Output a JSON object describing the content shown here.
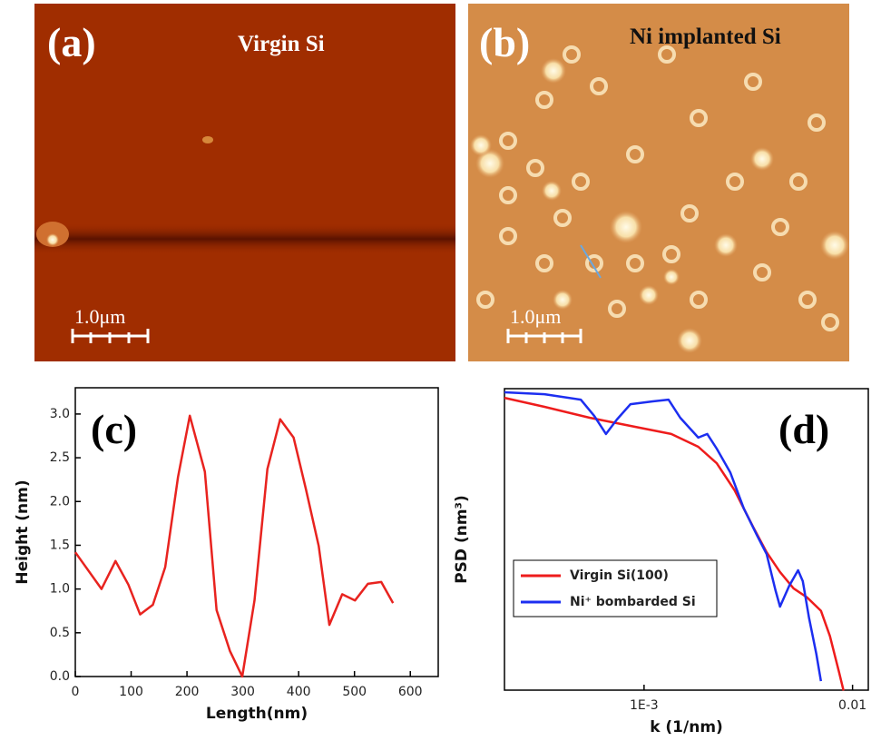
{
  "images": [
    {
      "label": "(a)",
      "caption": "Virgin Si",
      "scale_bar": "1.0μm"
    },
    {
      "label": "(b)",
      "caption": "Ni implanted Si",
      "scale_bar": "1.0μm"
    }
  ],
  "chart_data": [
    {
      "type": "line",
      "panel_label": "(c)",
      "x_label": "Length(nm)",
      "y_label": "Height (nm)",
      "color": "#e8231f",
      "x": [
        0,
        47,
        72,
        95,
        116,
        139,
        161,
        184,
        205,
        232,
        253,
        277,
        299,
        321,
        344,
        367,
        391,
        413,
        436,
        455,
        478,
        501,
        524,
        548,
        569
      ],
      "values": [
        1.42,
        1.0,
        1.32,
        1.05,
        0.71,
        0.82,
        1.25,
        2.28,
        2.98,
        2.34,
        0.76,
        0.29,
        0.0,
        0.87,
        2.37,
        2.94,
        2.73,
        2.14,
        1.49,
        0.59,
        0.94,
        0.87,
        1.06,
        1.08,
        0.84
      ],
      "xlim": [
        0,
        650
      ],
      "ylim": [
        0,
        3.3
      ],
      "xticks": [
        0,
        100,
        200,
        300,
        400,
        500,
        600
      ],
      "yticks": [
        {
          "value": 0,
          "label": "0.0"
        },
        0.5,
        {
          "value": 1,
          "label": "1.0"
        },
        1.5,
        {
          "value": 2,
          "label": "2.0"
        },
        2.5,
        {
          "value": 3,
          "label": "3.0"
        }
      ]
    },
    {
      "type": "line",
      "panel_label": "(d)",
      "x_label": "k (1/nm)",
      "y_label": "PSD (nm³)",
      "log_x": true,
      "log_y": true,
      "legend": "lower-left",
      "xlim": [
        0.000214,
        0.0119
      ],
      "ylim": [
        0.0545,
        56.9
      ],
      "xticks": [
        {
          "value": 0.001,
          "label": "1E-3"
        },
        0.01
      ],
      "series": [
        {
          "name": "Virgin Si(100)",
          "color": "#ee1c1c",
          "x": [
            0.000214,
            0.000333,
            0.000548,
            0.000905,
            0.00135,
            0.00182,
            0.00223,
            0.00272,
            0.00333,
            0.00387,
            0.00449,
            0.00521,
            0.00607,
            0.00705,
            0.00779,
            0.00861,
            0.00905
          ],
          "values": [
            46.1,
            37.4,
            29.1,
            23.6,
            20.0,
            14.9,
            10.2,
            5.45,
            2.36,
            1.31,
            0.83,
            0.57,
            0.46,
            0.34,
            0.19,
            0.083,
            0.054
          ]
        },
        {
          "name": "Ni⁺ bombarded Si",
          "color": "#1c2ef0",
          "x": [
            0.000214,
            0.000333,
            0.000497,
            0.000577,
            0.000657,
            0.000741,
            0.000861,
            0.0011,
            0.00131,
            0.00149,
            0.00182,
            0.00201,
            0.00223,
            0.00259,
            0.00301,
            0.00349,
            0.00387,
            0.00427,
            0.00449,
            0.00497,
            0.00548,
            0.00577,
            0.00618,
            0.0067,
            0.00705
          ],
          "values": [
            52.3,
            50.1,
            44.2,
            30.3,
            20.0,
            27.9,
            39.8,
            42.4,
            44.2,
            29.1,
            18.4,
            20.0,
            14.3,
            8.28,
            3.59,
            1.91,
            1.26,
            0.545,
            0.374,
            0.605,
            0.864,
            0.672,
            0.291,
            0.126,
            0.067
          ]
        }
      ]
    }
  ]
}
